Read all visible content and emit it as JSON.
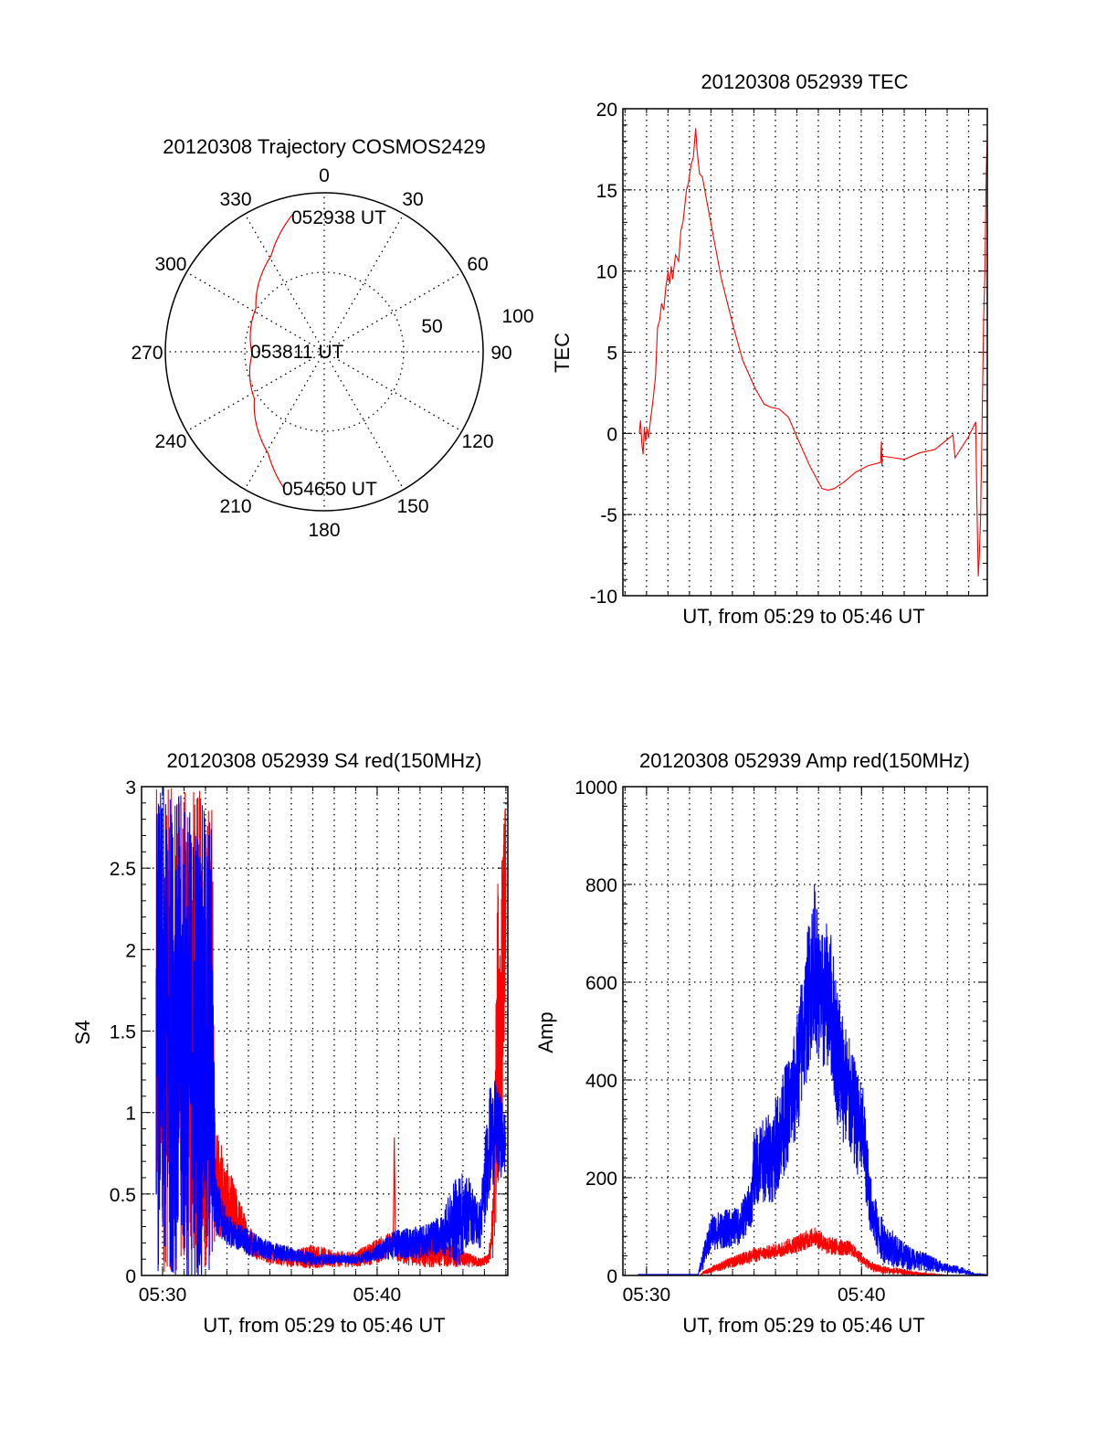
{
  "chart_data": [
    {
      "id": "trajectory",
      "type": "polar",
      "title": "20120308 Trajectory COSMOS2429",
      "angle_labels": [
        "0",
        "30",
        "60",
        "90",
        "120",
        "150",
        "180",
        "210",
        "240",
        "270",
        "300",
        "330"
      ],
      "radial_range": [
        0,
        100
      ],
      "radial_labels": [
        "50",
        "100"
      ],
      "radial_circles": [
        50,
        100
      ],
      "series_color": "#ff0000",
      "trajectory": {
        "azimuth_deg": [
          346.9,
          331,
          302.6,
          268.5,
          236,
          208.9,
          196.1
        ],
        "radius": [
          88.5,
          69,
          51,
          45.4,
          53,
          73,
          90
        ]
      },
      "annotations": [
        "052938 UT",
        "053811 UT",
        "054650 UT"
      ]
    },
    {
      "id": "tec",
      "type": "line",
      "title": "20120308 052939 TEC",
      "xlabel": "UT, from 05:29 to 05:46 UT",
      "ylabel": "TEC",
      "xlim": [
        28.9,
        45.87
      ],
      "ylim": [
        -10,
        20
      ],
      "yticks": [
        "-10",
        "-5",
        "0",
        "5",
        "10",
        "15",
        "20"
      ],
      "xticks": [],
      "grid": true,
      "series": [
        {
          "name": "TEC",
          "color": "#ff0000",
          "x": [
            29.66,
            29.72,
            29.78,
            29.84,
            29.9,
            29.96,
            30.02,
            30.09,
            30.2,
            30.3,
            30.42,
            30.51,
            30.62,
            30.7,
            30.8,
            30.9,
            31.01,
            31.08,
            31.15,
            31.22,
            31.35,
            31.5,
            31.6,
            31.7,
            31.86,
            31.95,
            32.07,
            32.18,
            32.29,
            32.35,
            32.47,
            32.6,
            32.78,
            32.99,
            33.49,
            34.06,
            34.48,
            35.05,
            35.48,
            35.8,
            36.18,
            36.61,
            37.03,
            37.6,
            38.17,
            38.45,
            38.74,
            39.2,
            39.73,
            40.3,
            40.87,
            40.9,
            40.94,
            40.96,
            40.98,
            41.5,
            42.0,
            42.71,
            43.42,
            44.27,
            44.37,
            45.0,
            45.33,
            45.38,
            45.45,
            45.5,
            45.56,
            45.62,
            45.7,
            45.76,
            45.82,
            45.87
          ],
          "y": [
            0.0,
            0.8,
            -0.6,
            -1.3,
            0.4,
            -0.5,
            0.3,
            -0.3,
            1.0,
            2.0,
            3.5,
            6.5,
            7.0,
            8.0,
            7.6,
            9.0,
            10.0,
            9.2,
            10.3,
            9.5,
            11.0,
            10.6,
            12.5,
            13.0,
            15.0,
            15.4,
            16.5,
            17.0,
            18.8,
            17.5,
            16.0,
            15.8,
            14.5,
            13.0,
            9.5,
            6.5,
            4.5,
            2.8,
            1.8,
            1.6,
            1.5,
            1.0,
            -0.3,
            -2.0,
            -3.4,
            -3.5,
            -3.4,
            -3.0,
            -2.4,
            -2.0,
            -1.8,
            -1.8,
            -0.5,
            -2.0,
            -1.4,
            -1.5,
            -1.6,
            -1.2,
            -1.0,
            -0.1,
            -1.5,
            -0.2,
            0.7,
            -4.0,
            -8.8,
            -7.5,
            -5.0,
            0.0,
            7.0,
            10.0,
            16.0,
            18.5
          ]
        }
      ]
    },
    {
      "id": "s4",
      "type": "line",
      "title": "20120308 052939 S4 red(150MHz)",
      "xlabel": "UT, from 05:29 to 05:46 UT",
      "ylabel": "S4",
      "xlim": [
        29.02,
        46.09
      ],
      "ylim": [
        0,
        3
      ],
      "yticks": [
        "0",
        "0.5",
        "1",
        "1.5",
        "2",
        "2.5",
        "3"
      ],
      "xticks": [
        {
          "value": 30,
          "label": "05:30"
        },
        {
          "value": 40,
          "label": "05:40"
        }
      ],
      "grid": true,
      "noise_note": "series given as mean and spread envelope of noisy signal",
      "series": [
        {
          "name": "red",
          "color": "#ff0000",
          "x": [
            29.7,
            30.5,
            31.5,
            32.3,
            32.45,
            33.0,
            34.0,
            35.0,
            36.0,
            37.0,
            38.0,
            39.0,
            40.0,
            40.75,
            40.8,
            40.85,
            41.0,
            42.0,
            43.0,
            44.0,
            44.8,
            45.2,
            45.4,
            45.6,
            45.8,
            46.0
          ],
          "mean": [
            1.5,
            1.5,
            1.5,
            1.5,
            0.6,
            0.45,
            0.22,
            0.12,
            0.1,
            0.12,
            0.1,
            0.1,
            0.15,
            0.2,
            0.85,
            0.2,
            0.15,
            0.15,
            0.15,
            0.1,
            0.08,
            0.1,
            0.3,
            1.4,
            1.6,
            2.5
          ],
          "spread": [
            1.5,
            1.5,
            1.5,
            1.5,
            0.35,
            0.25,
            0.1,
            0.05,
            0.05,
            0.08,
            0.05,
            0.05,
            0.08,
            0.08,
            0.05,
            0.08,
            0.08,
            0.1,
            0.1,
            0.05,
            0.03,
            0.03,
            0.2,
            1.0,
            1.0,
            0.5
          ]
        },
        {
          "name": "blue",
          "color": "#0000ff",
          "x": [
            29.7,
            30.5,
            31.5,
            32.3,
            32.45,
            33.0,
            34.0,
            35.0,
            36.0,
            37.0,
            38.0,
            39.0,
            40.0,
            41.0,
            42.0,
            43.0,
            43.8,
            44.3,
            44.8,
            45.2,
            45.5,
            45.8,
            46.0
          ],
          "mean": [
            1.5,
            1.5,
            1.4,
            1.4,
            0.45,
            0.28,
            0.2,
            0.15,
            0.13,
            0.1,
            0.1,
            0.1,
            0.14,
            0.2,
            0.2,
            0.25,
            0.35,
            0.4,
            0.3,
            0.8,
            0.9,
            0.85,
            0.8
          ],
          "spread": [
            1.5,
            1.5,
            1.5,
            1.5,
            0.2,
            0.1,
            0.08,
            0.06,
            0.05,
            0.04,
            0.03,
            0.03,
            0.05,
            0.1,
            0.1,
            0.12,
            0.3,
            0.2,
            0.15,
            0.35,
            0.3,
            0.25,
            0.2
          ]
        }
      ]
    },
    {
      "id": "amp",
      "type": "line",
      "title": "20120308 052939 Amp red(150MHz)",
      "xlabel": "UT, from 05:29 to 05:46 UT",
      "ylabel": "Amp",
      "xlim": [
        28.9,
        45.85
      ],
      "ylim": [
        0,
        1000
      ],
      "yticks": [
        "0",
        "200",
        "400",
        "600",
        "800",
        "1000"
      ],
      "xticks": [
        {
          "value": 30,
          "label": "05:30"
        },
        {
          "value": 40,
          "label": "05:40"
        }
      ],
      "grid": true,
      "series": [
        {
          "name": "red",
          "color": "#ff0000",
          "x": [
            29.6,
            32.5,
            32.6,
            33.5,
            34.9,
            36.0,
            37.3,
            37.8,
            38.5,
            39.5,
            40.1,
            40.6,
            41.3,
            42.8,
            44.0,
            45.5
          ],
          "mean": [
            0,
            0,
            5,
            20,
            40,
            50,
            70,
            80,
            60,
            55,
            30,
            15,
            10,
            3,
            0,
            0
          ],
          "spread": [
            0,
            0,
            3,
            10,
            15,
            15,
            20,
            20,
            20,
            15,
            10,
            10,
            8,
            3,
            0,
            0
          ]
        },
        {
          "name": "blue",
          "color": "#0000ff",
          "x": [
            29.6,
            32.4,
            32.6,
            33.05,
            34.3,
            34.9,
            35.0,
            35.9,
            36.9,
            37.3,
            37.8,
            38.1,
            38.5,
            38.9,
            39.5,
            40.1,
            40.4,
            40.8,
            41.3,
            41.9,
            42.8,
            43.9,
            44.7,
            45.3,
            45.8
          ],
          "mean": [
            2,
            2,
            30,
            90,
            100,
            150,
            220,
            250,
            380,
            500,
            650,
            550,
            580,
            450,
            350,
            280,
            150,
            80,
            60,
            40,
            30,
            15,
            10,
            2,
            2
          ],
          "spread": [
            0,
            0,
            20,
            40,
            40,
            50,
            80,
            100,
            120,
            150,
            160,
            150,
            150,
            150,
            120,
            100,
            60,
            50,
            40,
            30,
            20,
            10,
            8,
            1,
            0
          ]
        }
      ]
    }
  ]
}
